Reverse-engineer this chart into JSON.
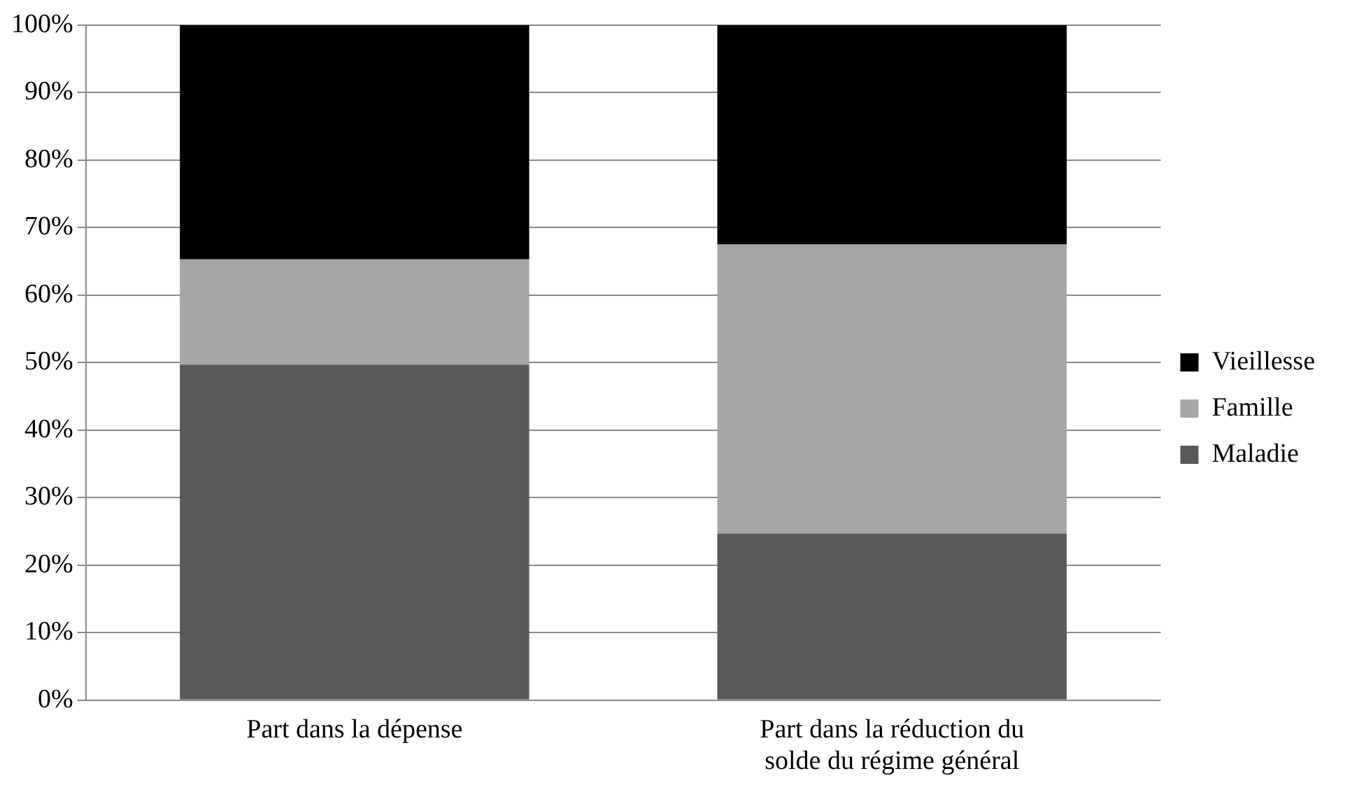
{
  "chart_data": {
    "type": "bar",
    "stacked": true,
    "categories": [
      "Part dans la dépense",
      "Part dans la réduction du solde du régime général"
    ],
    "series": [
      {
        "name": "Maladie",
        "color": "#595959",
        "values": [
          49.7,
          24.7
        ]
      },
      {
        "name": "Famille",
        "color": "#a6a6a6",
        "values": [
          15.6,
          42.8
        ]
      },
      {
        "name": "Vieillesse",
        "color": "#000000",
        "values": [
          34.7,
          32.5
        ]
      }
    ],
    "ylim": [
      0,
      100
    ],
    "yticks": [
      {
        "value": 0,
        "label": "0%"
      },
      {
        "value": 10,
        "label": "10%"
      },
      {
        "value": 20,
        "label": "20%"
      },
      {
        "value": 30,
        "label": "30%"
      },
      {
        "value": 40,
        "label": "40%"
      },
      {
        "value": 50,
        "label": "50%"
      },
      {
        "value": 60,
        "label": "60%"
      },
      {
        "value": 70,
        "label": "70%"
      },
      {
        "value": 80,
        "label": "80%"
      },
      {
        "value": 90,
        "label": "90%"
      },
      {
        "value": 100,
        "label": "100%"
      }
    ],
    "grid": "y",
    "legend": "right"
  }
}
